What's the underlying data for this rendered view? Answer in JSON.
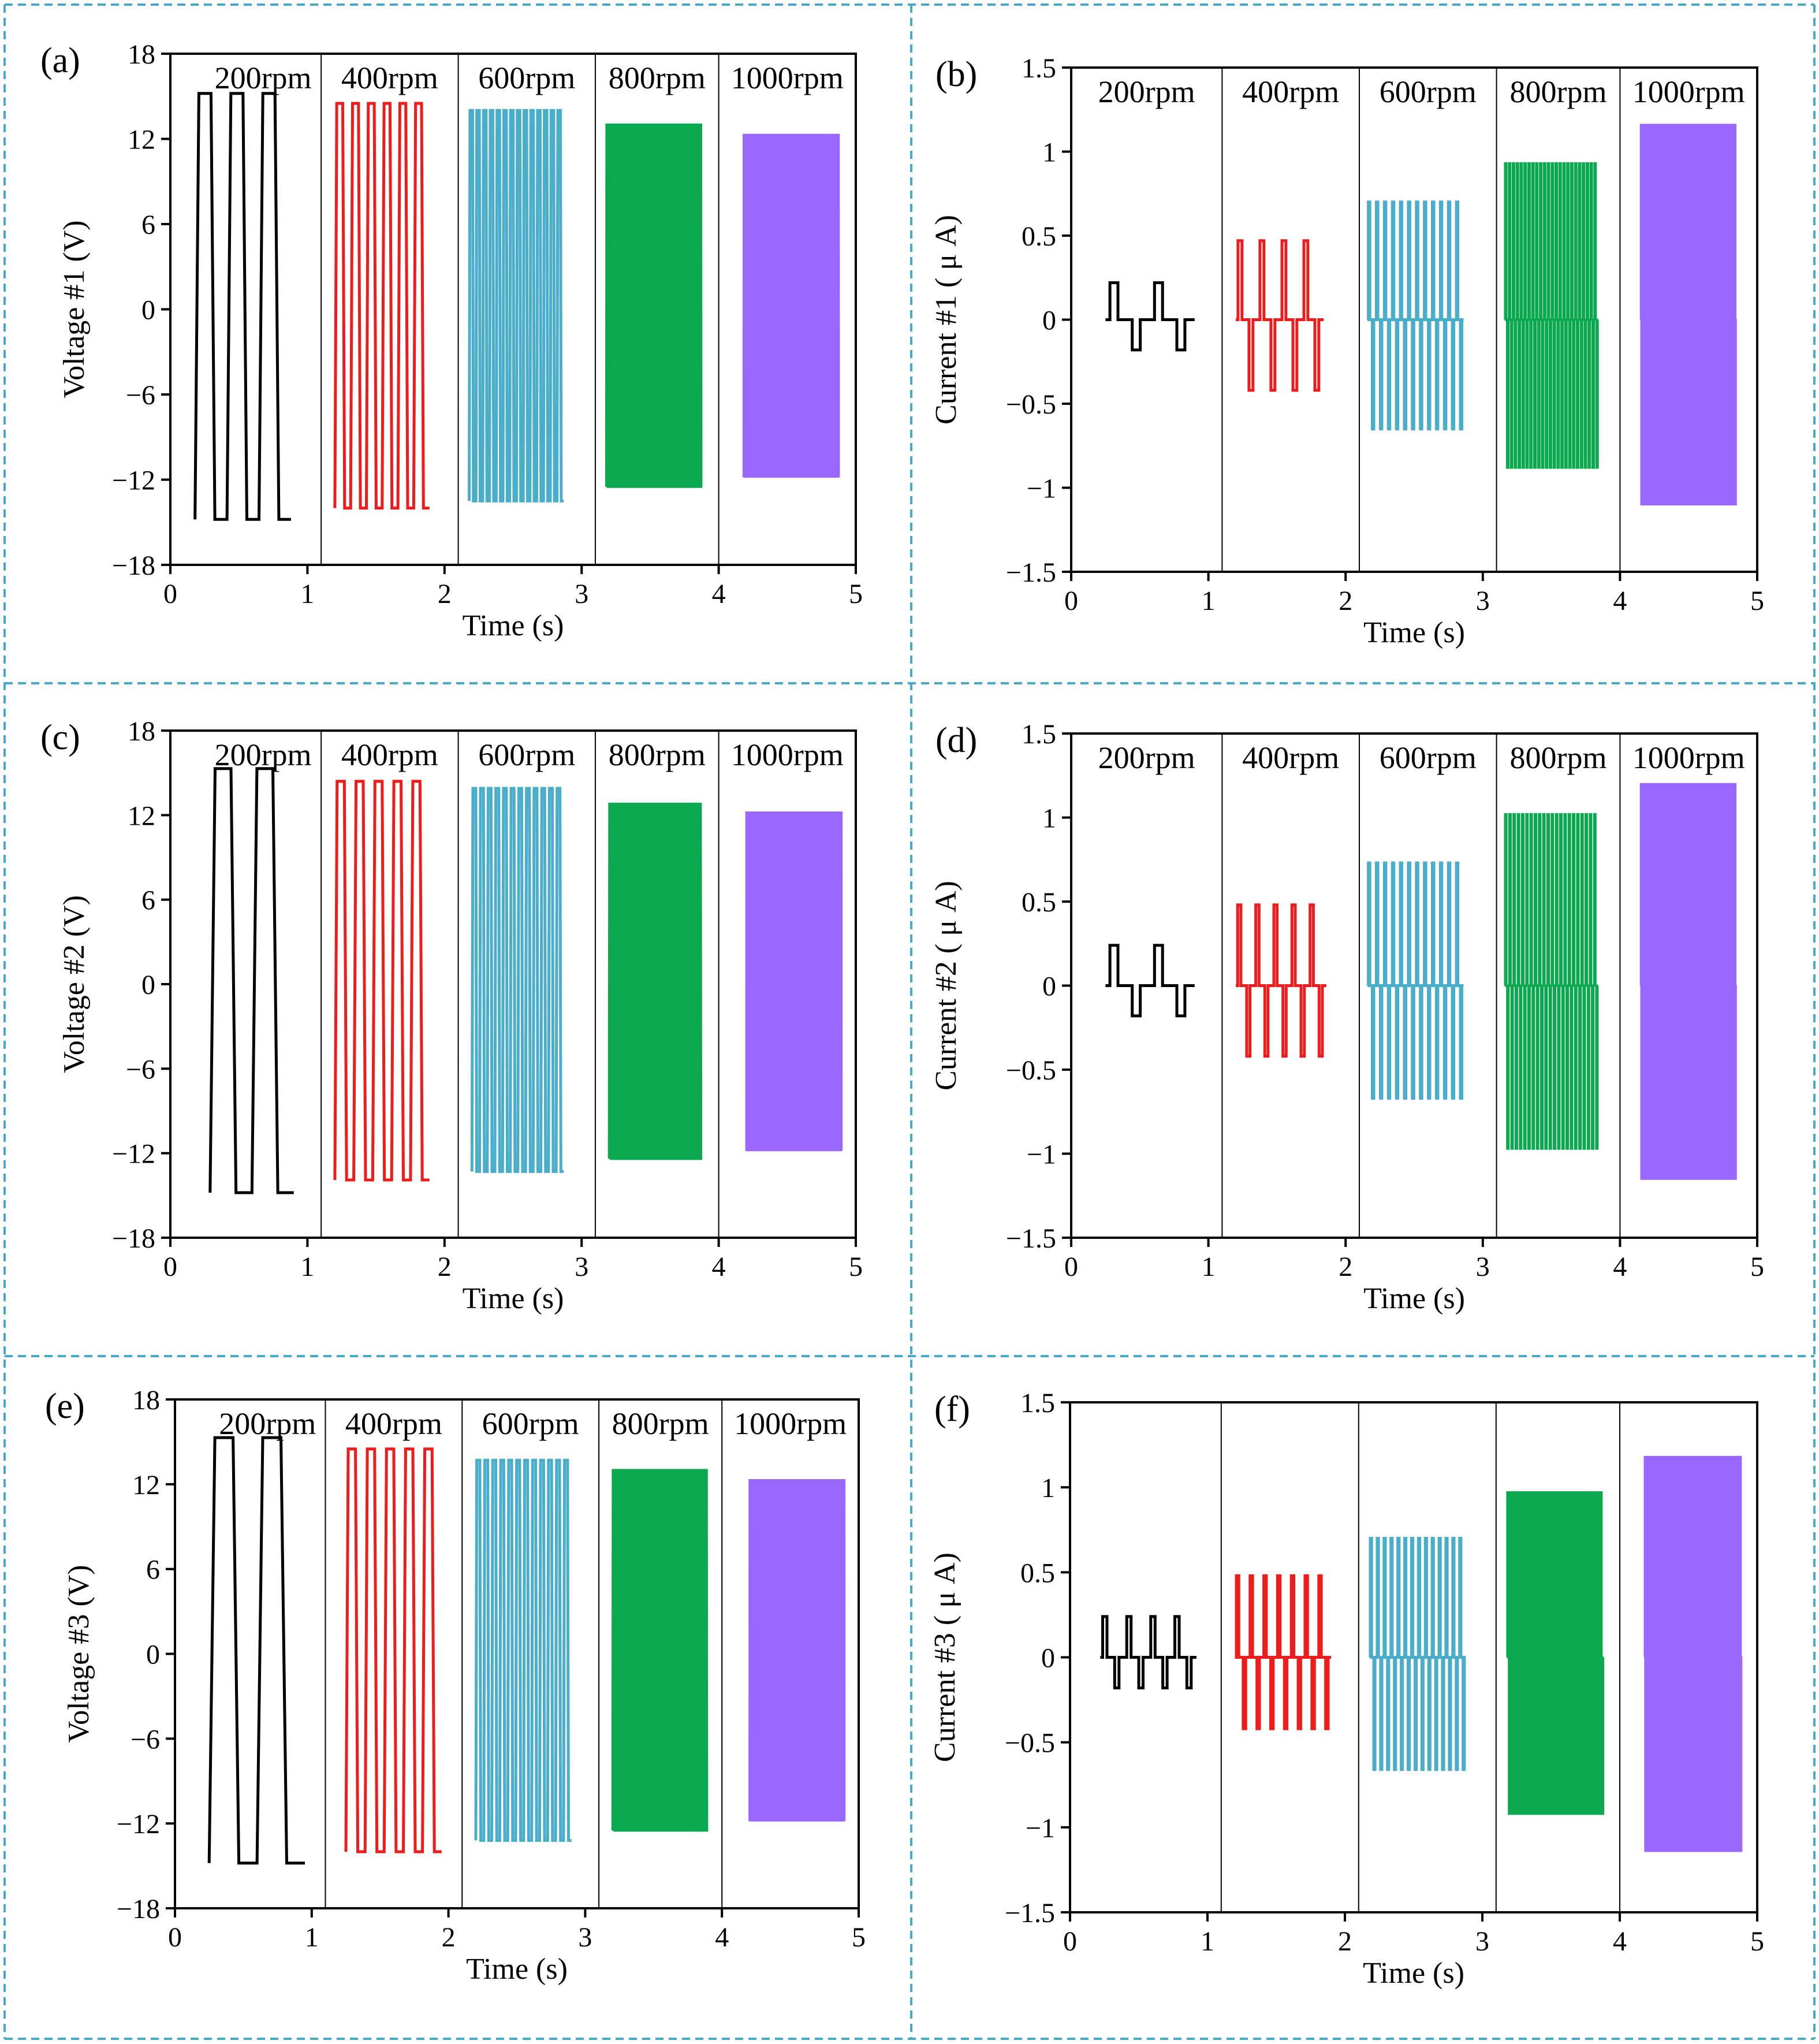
{
  "colors": {
    "frame": "#4aa9c8",
    "series": [
      "#000000",
      "#ee1c1c",
      "#4aaecb",
      "#0aa84f",
      "#9966ff"
    ]
  },
  "chart_data": [
    {
      "panel": "(a)",
      "type": "line",
      "ylabel": "Voltage #1 (V)",
      "xlabel": "Time (s)",
      "xlim": [
        0,
        5
      ],
      "ylim": [
        -18,
        18
      ],
      "xticks": [
        "0",
        "1",
        "2",
        "3",
        "4",
        "5"
      ],
      "yticks": [
        "−18",
        "−12",
        "−6",
        "0",
        "6",
        "12",
        "18"
      ],
      "dividers": [
        1.1,
        2.1,
        3.1,
        4.0
      ],
      "series": [
        {
          "name": "200rpm",
          "label": "200rpm",
          "start": 0.18,
          "end": 0.88,
          "amp_pos": 15.2,
          "amp_neg": -14.8,
          "cycles": 3
        },
        {
          "name": "400rpm",
          "label": "400rpm",
          "start": 1.2,
          "end": 1.89,
          "amp_pos": 14.5,
          "amp_neg": -14.0,
          "cycles": 6
        },
        {
          "name": "600rpm",
          "label": "600rpm",
          "start": 2.18,
          "end": 2.87,
          "amp_pos": 14.0,
          "amp_neg": -13.5,
          "cycles": 14
        },
        {
          "name": "800rpm",
          "label": "800rpm",
          "start": 3.18,
          "end": 3.88,
          "amp_pos": 13.0,
          "amp_neg": -12.5,
          "cycles": 40
        },
        {
          "name": "1000rpm",
          "label": "1000rpm",
          "start": 4.18,
          "end": 4.88,
          "amp_pos": 12.3,
          "amp_neg": -11.8,
          "cycles": 120
        }
      ]
    },
    {
      "panel": "(b)",
      "type": "line",
      "ylabel": "Current #1 ( μ A)",
      "xlabel": "Time (s)",
      "xlim": [
        0,
        5
      ],
      "ylim": [
        -1.5,
        1.5
      ],
      "xticks": [
        "0",
        "1",
        "2",
        "3",
        "4",
        "5"
      ],
      "yticks": [
        "−1.5",
        "−1",
        "−0.5",
        "0",
        "0.5",
        "1",
        "1.5"
      ],
      "dividers": [
        1.1,
        2.1,
        3.1,
        4.0
      ],
      "series": [
        {
          "name": "200rpm",
          "label": "200rpm",
          "start": 0.25,
          "end": 0.9,
          "amp_pos": 0.22,
          "amp_neg": -0.18,
          "cycles": 2
        },
        {
          "name": "400rpm",
          "label": "400rpm",
          "start": 1.2,
          "end": 1.84,
          "amp_pos": 0.47,
          "amp_neg": -0.42,
          "cycles": 4
        },
        {
          "name": "600rpm",
          "label": "600rpm",
          "start": 2.16,
          "end": 2.86,
          "amp_pos": 0.7,
          "amp_neg": -0.65,
          "cycles": 12
        },
        {
          "name": "800rpm",
          "label": "800rpm",
          "start": 3.16,
          "end": 3.84,
          "amp_pos": 0.93,
          "amp_neg": -0.88,
          "cycles": 24
        },
        {
          "name": "1000rpm",
          "label": "1000rpm",
          "start": 4.15,
          "end": 4.84,
          "amp_pos": 1.16,
          "amp_neg": -1.1,
          "cycles": 100
        }
      ]
    },
    {
      "panel": "(c)",
      "type": "line",
      "ylabel": "Voltage #2 (V)",
      "xlabel": "Time (s)",
      "xlim": [
        0,
        5
      ],
      "ylim": [
        -18,
        18
      ],
      "xticks": [
        "0",
        "1",
        "2",
        "3",
        "4",
        "5"
      ],
      "yticks": [
        "−18",
        "−12",
        "−6",
        "0",
        "6",
        "12",
        "18"
      ],
      "dividers": [
        1.1,
        2.1,
        3.1,
        4.0
      ],
      "series": [
        {
          "name": "200rpm",
          "label": "200rpm",
          "start": 0.29,
          "end": 0.9,
          "amp_pos": 15.3,
          "amp_neg": -14.8,
          "cycles": 2
        },
        {
          "name": "400rpm",
          "label": "400rpm",
          "start": 1.2,
          "end": 1.89,
          "amp_pos": 14.4,
          "amp_neg": -13.9,
          "cycles": 5
        },
        {
          "name": "600rpm",
          "label": "600rpm",
          "start": 2.2,
          "end": 2.87,
          "amp_pos": 13.9,
          "amp_neg": -13.3,
          "cycles": 12
        },
        {
          "name": "800rpm",
          "label": "800rpm",
          "start": 3.2,
          "end": 3.88,
          "amp_pos": 12.8,
          "amp_neg": -12.4,
          "cycles": 30
        },
        {
          "name": "1000rpm",
          "label": "1000rpm",
          "start": 4.2,
          "end": 4.9,
          "amp_pos": 12.2,
          "amp_neg": -11.8,
          "cycles": 120
        }
      ]
    },
    {
      "panel": "(d)",
      "type": "line",
      "ylabel": "Current #2 ( μ A)",
      "xlabel": "Time (s)",
      "xlim": [
        0,
        5
      ],
      "ylim": [
        -1.5,
        1.5
      ],
      "xticks": [
        "0",
        "1",
        "2",
        "3",
        "4",
        "5"
      ],
      "yticks": [
        "−1.5",
        "−1",
        "−0.5",
        "0",
        "0.5",
        "1",
        "1.5"
      ],
      "dividers": [
        1.1,
        2.1,
        3.1,
        4.0
      ],
      "series": [
        {
          "name": "200rpm",
          "label": "200rpm",
          "start": 0.25,
          "end": 0.9,
          "amp_pos": 0.24,
          "amp_neg": -0.18,
          "cycles": 2
        },
        {
          "name": "400rpm",
          "label": "400rpm",
          "start": 1.2,
          "end": 1.86,
          "amp_pos": 0.48,
          "amp_neg": -0.42,
          "cycles": 5
        },
        {
          "name": "600rpm",
          "label": "600rpm",
          "start": 2.16,
          "end": 2.86,
          "amp_pos": 0.73,
          "amp_neg": -0.67,
          "cycles": 12
        },
        {
          "name": "800rpm",
          "label": "800rpm",
          "start": 3.16,
          "end": 3.84,
          "amp_pos": 1.02,
          "amp_neg": -0.97,
          "cycles": 22
        },
        {
          "name": "1000rpm",
          "label": "1000rpm",
          "start": 4.15,
          "end": 4.84,
          "amp_pos": 1.2,
          "amp_neg": -1.15,
          "cycles": 100
        }
      ]
    },
    {
      "panel": "(e)",
      "type": "line",
      "ylabel": "Voltage #3 (V)",
      "xlabel": "Time (s)",
      "xlim": [
        0,
        5
      ],
      "ylim": [
        -18,
        18
      ],
      "xticks": [
        "0",
        "1",
        "2",
        "3",
        "4",
        "5"
      ],
      "yticks": [
        "−18",
        "−12",
        "−6",
        "0",
        "6",
        "12",
        "18"
      ],
      "dividers": [
        1.1,
        2.1,
        3.1,
        4.0
      ],
      "series": [
        {
          "name": "200rpm",
          "label": "200rpm",
          "start": 0.25,
          "end": 0.95,
          "amp_pos": 15.3,
          "amp_neg": -14.8,
          "cycles": 2
        },
        {
          "name": "400rpm",
          "label": "400rpm",
          "start": 1.25,
          "end": 1.95,
          "amp_pos": 14.5,
          "amp_neg": -14.0,
          "cycles": 5
        },
        {
          "name": "600rpm",
          "label": "600rpm",
          "start": 2.2,
          "end": 2.9,
          "amp_pos": 13.7,
          "amp_neg": -13.2,
          "cycles": 12
        },
        {
          "name": "800rpm",
          "label": "800rpm",
          "start": 3.2,
          "end": 3.9,
          "amp_pos": 13.0,
          "amp_neg": -12.5,
          "cycles": 30
        },
        {
          "name": "1000rpm",
          "label": "1000rpm",
          "start": 4.2,
          "end": 4.9,
          "amp_pos": 12.3,
          "amp_neg": -11.8,
          "cycles": 120
        }
      ]
    },
    {
      "panel": "(f)",
      "type": "line",
      "ylabel": "Current #3 ( μ A)",
      "xlabel": "Time (s)",
      "xlim": [
        0,
        5
      ],
      "ylim": [
        -1.5,
        1.5
      ],
      "xticks": [
        "0",
        "1",
        "2",
        "3",
        "4",
        "5"
      ],
      "yticks": [
        "−1.5",
        "−1",
        "−0.5",
        "0",
        "0.5",
        "1",
        "1.5"
      ],
      "dividers": [
        1.1,
        2.1,
        3.1,
        4.0
      ],
      "series": [
        {
          "name": "200rpm",
          "start": 0.22,
          "end": 0.92,
          "amp_pos": 0.24,
          "amp_neg": -0.18,
          "cycles": 4
        },
        {
          "name": "400rpm",
          "start": 1.2,
          "end": 1.9,
          "amp_pos": 0.48,
          "amp_neg": -0.42,
          "cycles": 7
        },
        {
          "name": "600rpm",
          "start": 2.18,
          "end": 2.88,
          "amp_pos": 0.7,
          "amp_neg": -0.66,
          "cycles": 14
        },
        {
          "name": "800rpm",
          "start": 3.18,
          "end": 3.88,
          "amp_pos": 0.97,
          "amp_neg": -0.92,
          "cycles": 30
        },
        {
          "name": "1000rpm",
          "start": 4.18,
          "end": 4.88,
          "amp_pos": 1.18,
          "amp_neg": -1.14,
          "cycles": 100
        }
      ]
    }
  ]
}
